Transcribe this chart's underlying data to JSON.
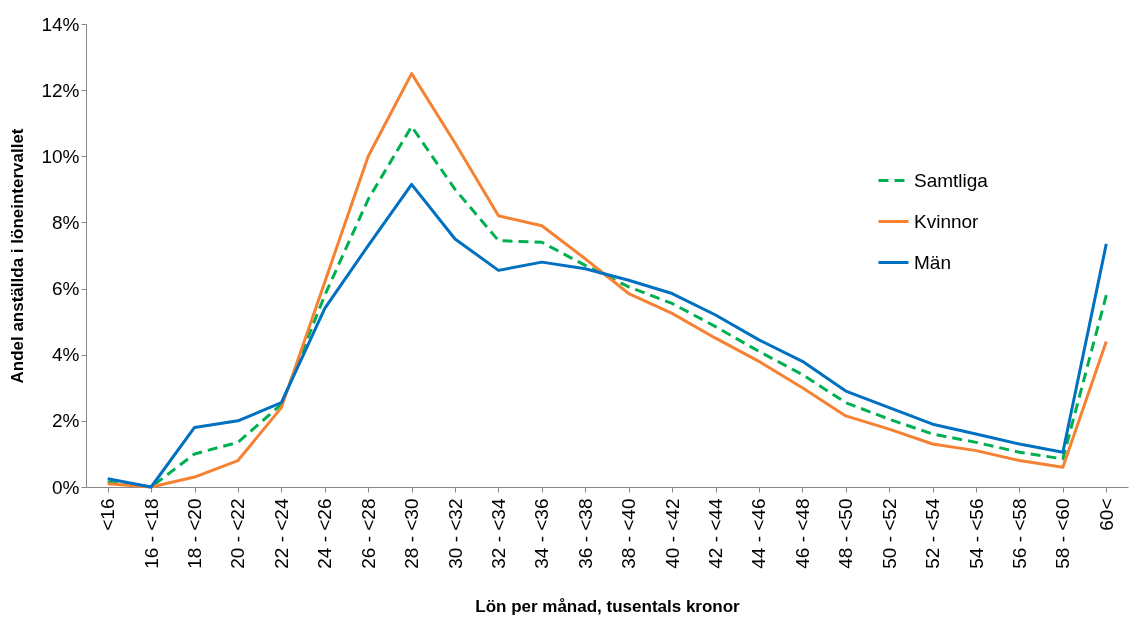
{
  "chart_data": {
    "type": "line",
    "xlabel": "Lön per månad, tusentals kronor",
    "ylabel": "Andel anställda i löneintervallet",
    "categories": [
      "<16",
      "16 - <18",
      "18 - <20",
      "20 - <22",
      "22 - <24",
      "24 - <26",
      "26 - <28",
      "28 - <30",
      "30 - <32",
      "32 - <34",
      "34 - <36",
      "36 - <38",
      "38 - <40",
      "40 - <42",
      "42 - <44",
      "44 - <46",
      "46 - <48",
      "48 - <50",
      "50 - <52",
      "52 - <54",
      "54 - <56",
      "56 - <58",
      "58 - <60",
      "60<"
    ],
    "series": [
      {
        "name": "Samtliga",
        "color": "#00b050",
        "line_style": "dashed",
        "values": [
          0.15,
          0,
          1.0,
          1.35,
          2.5,
          5.8,
          8.7,
          10.9,
          9.0,
          7.45,
          7.4,
          6.7,
          6.05,
          5.55,
          4.85,
          4.1,
          3.4,
          2.55,
          2.05,
          1.6,
          1.35,
          1.05,
          0.85,
          5.8
        ]
      },
      {
        "name": "Kvinnor",
        "color": "#f58232",
        "line_style": "solid",
        "values": [
          0.1,
          0,
          0.3,
          0.8,
          2.4,
          6.2,
          10.0,
          12.5,
          10.4,
          8.2,
          7.9,
          6.9,
          5.85,
          5.25,
          4.5,
          3.8,
          3.0,
          2.15,
          1.75,
          1.3,
          1.1,
          0.8,
          0.6,
          4.4
        ]
      },
      {
        "name": "Män",
        "color": "#0070c0",
        "line_style": "solid",
        "values": [
          0.25,
          0,
          1.8,
          2.0,
          2.55,
          5.4,
          7.3,
          9.15,
          7.5,
          6.55,
          6.8,
          6.6,
          6.25,
          5.85,
          5.2,
          4.45,
          3.8,
          2.9,
          2.4,
          1.9,
          1.6,
          1.3,
          1.05,
          7.35
        ]
      }
    ],
    "ylim": [
      0,
      14
    ],
    "yticks": [
      {
        "value": 0,
        "label": "0%"
      },
      {
        "value": 2,
        "label": "2%"
      },
      {
        "value": 4,
        "label": "4%"
      },
      {
        "value": 6,
        "label": "6%"
      },
      {
        "value": 8,
        "label": "8%"
      },
      {
        "value": 10,
        "label": "10%"
      },
      {
        "value": 12,
        "label": "12%"
      },
      {
        "value": 14,
        "label": "14%"
      }
    ],
    "grid": false,
    "legend": "top right",
    "marker": "none"
  }
}
